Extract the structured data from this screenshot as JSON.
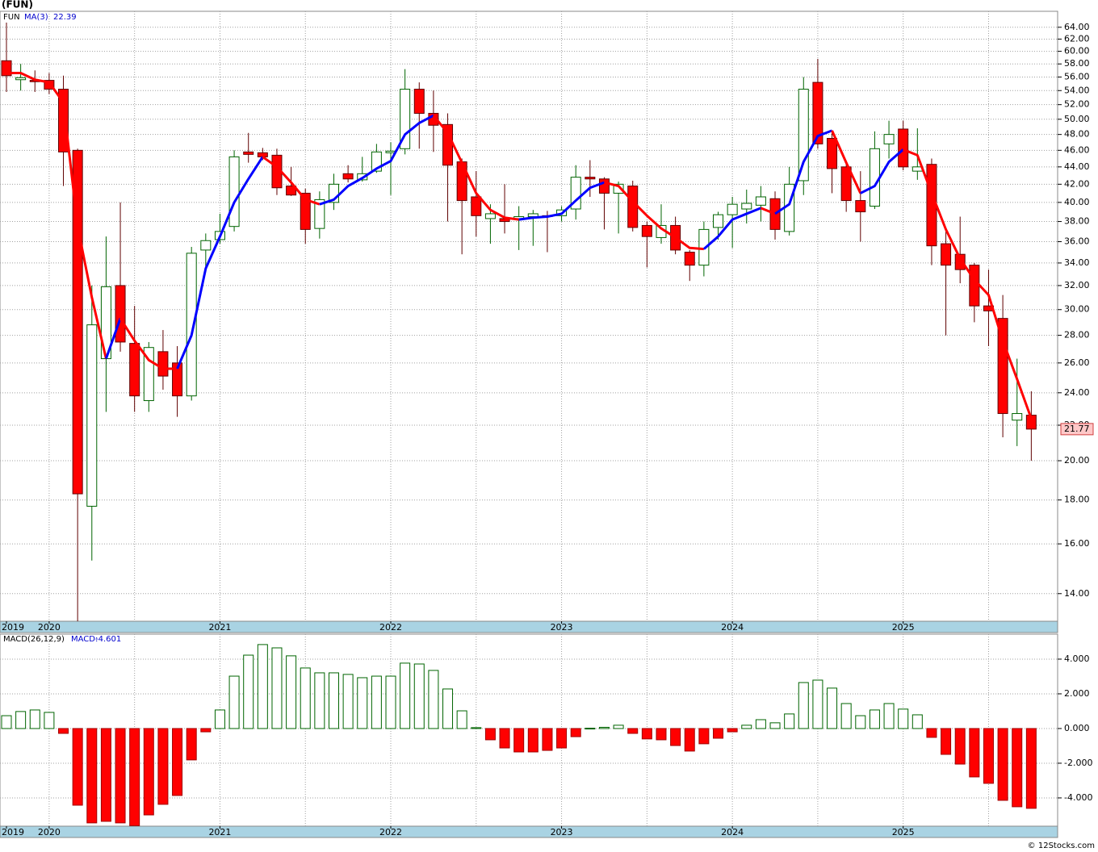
{
  "footer": "© 12Stocks.com",
  "chart_data": [
    {
      "type": "candlestick",
      "title": "(FUN)",
      "symbol": "FUN",
      "log_scale": true,
      "grid": true,
      "up_color": "#006400",
      "down_color": "#ff0000",
      "categories": [
        "2019",
        null,
        null,
        "2020",
        null,
        null,
        null,
        null,
        null,
        null,
        null,
        null,
        null,
        null,
        null,
        "2021",
        null,
        null,
        null,
        null,
        null,
        null,
        null,
        null,
        null,
        null,
        null,
        "2022",
        null,
        null,
        null,
        null,
        null,
        null,
        null,
        null,
        null,
        null,
        null,
        "2023",
        null,
        null,
        null,
        null,
        null,
        null,
        null,
        null,
        null,
        null,
        null,
        "2024",
        null,
        null,
        null,
        null,
        null,
        null,
        null,
        null,
        null,
        null,
        null,
        "2025",
        null,
        null,
        null,
        null,
        null,
        null,
        null,
        null,
        null
      ],
      "open": [
        58.5,
        55.6,
        55.5,
        55.5,
        54.2,
        46,
        17.7,
        26.3,
        32,
        27.4,
        23.5,
        26.8,
        26,
        23.8,
        35.2,
        36.2,
        37.5,
        45.8,
        45.7,
        45.4,
        41.8,
        41,
        37.3,
        40,
        43.2,
        42.5,
        43.5,
        45.7,
        46.2,
        54.2,
        50.8,
        49.3,
        44.6,
        40.6,
        38.3,
        38.3,
        38.3,
        38.5,
        38.6,
        38.6,
        39.3,
        42.8,
        42.6,
        41,
        41.8,
        37.6,
        36.4,
        37.6,
        35,
        33.8,
        37.4,
        38.7,
        39.3,
        39.7,
        40.4,
        37,
        42.4,
        55.2,
        47.5,
        44,
        40.2,
        39.6,
        46.8,
        48.7,
        43.5,
        44.3,
        35.8,
        34.8,
        33.8,
        30.3,
        29.3,
        22.3,
        22.6
      ],
      "high": [
        64.8,
        58,
        57,
        56.6,
        56.2,
        46.2,
        32,
        36.5,
        40,
        30.3,
        27.5,
        28.4,
        27.2,
        35.5,
        36.8,
        38.8,
        46,
        48.2,
        46.3,
        46.2,
        44,
        41.5,
        41.2,
        43.2,
        44.2,
        45.2,
        46.8,
        47,
        57.2,
        55.2,
        54,
        50.8,
        45,
        43.5,
        39.8,
        42,
        39.6,
        39.2,
        39.1,
        39.6,
        44.2,
        44.8,
        42.8,
        42.3,
        42.4,
        38,
        39.8,
        38.5,
        35.2,
        38,
        39,
        40.6,
        41.4,
        41.8,
        41.2,
        44,
        56,
        58.8,
        48.2,
        44.3,
        43.5,
        48.4,
        49.8,
        49.8,
        48.8,
        45,
        37,
        38.5,
        34,
        33.4,
        31.2,
        26.3,
        24.1
      ],
      "low": [
        53.8,
        54,
        53.8,
        53.5,
        41.8,
        13,
        15.3,
        22.8,
        26.8,
        22.8,
        22.8,
        24.2,
        22.5,
        23.5,
        33.6,
        35.8,
        37,
        44.5,
        44.8,
        40.8,
        40.7,
        35.8,
        36.3,
        39.2,
        42.2,
        42.3,
        43.3,
        40.8,
        45.5,
        46.2,
        45.8,
        38,
        34.8,
        36.5,
        35.8,
        36.8,
        35.2,
        35.6,
        35,
        38,
        38.2,
        40.6,
        37.2,
        36.8,
        37,
        33.6,
        35.8,
        34.8,
        32.4,
        32.8,
        36.2,
        35.4,
        37.8,
        38,
        36.2,
        36.6,
        40.8,
        46.2,
        41,
        39,
        36,
        39.3,
        45,
        43.6,
        42.5,
        33.8,
        28,
        32.2,
        29,
        27.2,
        21.3,
        20.8,
        20
      ],
      "close": [
        56.2,
        55.9,
        55.3,
        54.2,
        45.8,
        18.3,
        28.8,
        31.9,
        27.5,
        23.8,
        27.1,
        25.1,
        23.8,
        34.9,
        36.1,
        37,
        45.2,
        45.5,
        45.2,
        41.6,
        40.8,
        37.2,
        40.3,
        42,
        42.6,
        43.2,
        45.8,
        45.9,
        54.2,
        50.8,
        49.2,
        44.2,
        40.2,
        38.6,
        38.8,
        38,
        38.5,
        38.8,
        38.5,
        39.2,
        42.8,
        42.6,
        41,
        42,
        37.4,
        36.5,
        37.6,
        35.2,
        33.8,
        37.2,
        38.7,
        39.8,
        39.9,
        40.6,
        37.2,
        42,
        54.2,
        46.8,
        43.8,
        40.2,
        39,
        46.2,
        48,
        44,
        44,
        35.6,
        33.8,
        33.4,
        30.3,
        29.9,
        22.7,
        22.7,
        21.77
      ],
      "overlay": {
        "name": "MA(3)",
        "up_color": "#0000ff",
        "down_color": "#ff0000",
        "values": [
          56.6,
          56.6,
          55.6,
          55.2,
          52.3,
          37.5,
          31,
          26.3,
          29.3,
          27.6,
          26.2,
          25.6,
          25.6,
          28,
          33.5,
          36.5,
          40,
          42.6,
          45.2,
          44,
          42.2,
          40.3,
          39.8,
          40.3,
          41.8,
          42.7,
          43.8,
          44.7,
          48,
          49.5,
          50.5,
          48.2,
          44.5,
          41,
          39.2,
          38.4,
          38.2,
          38.4,
          38.5,
          38.8,
          40.2,
          41.6,
          42.2,
          41.8,
          40.1,
          38.6,
          37.3,
          36.4,
          35.4,
          35.3,
          36.5,
          38.2,
          38.8,
          39.4,
          38.8,
          39.8,
          44.6,
          47.8,
          48.5,
          44.5,
          41,
          41.8,
          44.6,
          46.1,
          45.4,
          41,
          37.2,
          34.4,
          32.5,
          31.2,
          27.6,
          24.9,
          22.39
        ]
      },
      "ylim": [
        13,
        66.8
      ],
      "yticks": [
        {
          "value": 14,
          "label": "14.00"
        },
        {
          "value": 16,
          "label": "16.00"
        },
        {
          "value": 18,
          "label": "18.00"
        },
        {
          "value": 20,
          "label": "20.00"
        },
        {
          "value": 22,
          "label": "22.00"
        },
        {
          "value": 24,
          "label": "24.00"
        },
        {
          "value": 26,
          "label": "26.00"
        },
        {
          "value": 28,
          "label": "28.00"
        },
        {
          "value": 30,
          "label": "30.00"
        },
        {
          "value": 32,
          "label": "32.00"
        },
        {
          "value": 34,
          "label": "34.00"
        },
        {
          "value": 36,
          "label": "36.00"
        },
        {
          "value": 38,
          "label": "38.00"
        },
        {
          "value": 40,
          "label": "40.00"
        },
        {
          "value": 42,
          "label": "42.00"
        },
        {
          "value": 44,
          "label": "44.00"
        },
        {
          "value": 46,
          "label": "46.00"
        },
        {
          "value": 48,
          "label": "48.00"
        },
        {
          "value": 50,
          "label": "50.00"
        },
        {
          "value": 52,
          "label": "52.00"
        },
        {
          "value": 54,
          "label": "54.00"
        },
        {
          "value": 56,
          "label": "56.00"
        },
        {
          "value": 58,
          "label": "58.00"
        },
        {
          "value": 60,
          "label": "60.00"
        },
        {
          "value": 62,
          "label": "62.00"
        },
        {
          "value": 64,
          "label": "64.00"
        }
      ]
    },
    {
      "type": "bar",
      "legend_label": "MACD(26,12,9)",
      "value_prefix": "MACD:",
      "grid": true,
      "up_color": "#006400",
      "down_color": "#ff0000",
      "categories": [
        "2019",
        null,
        null,
        "2020",
        null,
        null,
        null,
        null,
        null,
        null,
        null,
        null,
        null,
        null,
        null,
        "2021",
        null,
        null,
        null,
        null,
        null,
        null,
        null,
        null,
        null,
        null,
        null,
        "2022",
        null,
        null,
        null,
        null,
        null,
        null,
        null,
        null,
        null,
        null,
        null,
        "2023",
        null,
        null,
        null,
        null,
        null,
        null,
        null,
        null,
        null,
        null,
        null,
        "2024",
        null,
        null,
        null,
        null,
        null,
        null,
        null,
        null,
        null,
        null,
        null,
        "2025",
        null,
        null,
        null,
        null,
        null,
        null,
        null,
        null,
        null
      ],
      "values": [
        0.74,
        0.98,
        1.07,
        0.93,
        -0.28,
        -4.42,
        -5.44,
        -5.35,
        -5.44,
        -5.6,
        -4.98,
        -4.37,
        -3.86,
        -1.81,
        -0.19,
        1.07,
        3.02,
        4.23,
        4.84,
        4.65,
        4.19,
        3.49,
        3.21,
        3.21,
        3.12,
        2.93,
        3.02,
        3.02,
        3.77,
        3.72,
        3.35,
        2.28,
        1.02,
        0.05,
        -0.65,
        -1.12,
        -1.35,
        -1.35,
        -1.26,
        -1.12,
        -0.47,
        0.02,
        0.07,
        0.19,
        -0.28,
        -0.6,
        -0.65,
        -0.98,
        -1.3,
        -0.88,
        -0.56,
        -0.19,
        0.19,
        0.51,
        0.33,
        0.84,
        2.65,
        2.79,
        2.33,
        1.44,
        0.74,
        1.07,
        1.44,
        1.12,
        0.79,
        -0.51,
        -1.49,
        -2.05,
        -2.79,
        -3.16,
        -4.14,
        -4.51,
        -4.601
      ],
      "ylim": [
        -5.63,
        5.44
      ],
      "yticks": [
        {
          "value": -4,
          "label": "-4.000"
        },
        {
          "value": -2,
          "label": "-2.000"
        },
        {
          "value": 0,
          "label": "0.000"
        },
        {
          "value": 2,
          "label": "2.000"
        },
        {
          "value": 4,
          "label": "4.000"
        }
      ]
    }
  ]
}
